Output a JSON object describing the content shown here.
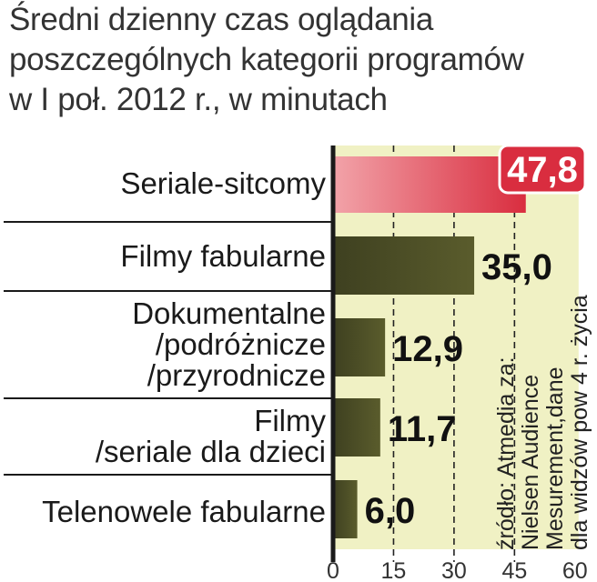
{
  "title_lines": [
    "Średni dzienny czas oglądania",
    "poszczególnych kategorii programów",
    "w I poł. 2012 r., w minutach"
  ],
  "source_lines": [
    "źródło: Atmedia za:",
    "Nielsen Audience",
    "Mesurement,dane",
    "dla widzów pow 4 r. życia"
  ],
  "colors": {
    "highlight": "#d92d3f",
    "bar": "#5a5c2c",
    "plot_bg": "#f0f1c4",
    "axis": "#1a1a1a"
  },
  "chart_data": {
    "type": "bar",
    "orientation": "horizontal",
    "categories": [
      [
        "Seriale-sitcomy"
      ],
      [
        "Filmy fabularne"
      ],
      [
        "Dokumentalne",
        "/podróżnicze",
        "/przyrodnicze"
      ],
      [
        "Filmy",
        "/seriale dla dzieci"
      ],
      [
        "Telenowele fabularne"
      ]
    ],
    "values": [
      47.8,
      35.0,
      12.9,
      11.7,
      6.0
    ],
    "value_labels": [
      "47,8",
      "35,0",
      "12,9",
      "11,7",
      "6,0"
    ],
    "highlight_index": 0,
    "xlim": [
      0,
      60
    ],
    "xticks": [
      0,
      15,
      30,
      45,
      60
    ],
    "xtick_labels": [
      "0",
      "15",
      "30",
      "45",
      "60"
    ],
    "grid": "dashed vertical at 15, 30, 45",
    "title": "Średni dzienny czas oglądania poszczególnych kategorii programów w I poł. 2012 r., w minutach",
    "xlabel": "",
    "ylabel": ""
  }
}
